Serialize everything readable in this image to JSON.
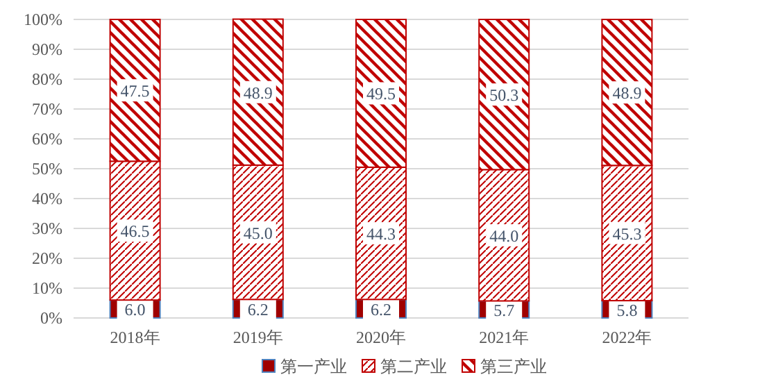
{
  "chart_data": {
    "type": "bar",
    "stacked": true,
    "legend": "bottom",
    "grid": "y",
    "categories": [
      "2018年",
      "2019年",
      "2020年",
      "2021年",
      "2022年"
    ],
    "series": [
      {
        "name": "第一产业",
        "color": "#a00000",
        "values": [
          6.0,
          6.2,
          6.2,
          5.7,
          5.8
        ],
        "value_labels": [
          "6.0",
          "6.2",
          "6.2",
          "5.7",
          "5.8"
        ]
      },
      {
        "name": "第二产业",
        "color": "#c00000",
        "values": [
          46.5,
          45.0,
          44.3,
          44.0,
          45.3
        ],
        "value_labels": [
          "46.5",
          "45.0",
          "44.3",
          "44.0",
          "45.3"
        ]
      },
      {
        "name": "第三产业",
        "color": "#c00000",
        "values": [
          47.5,
          48.9,
          49.5,
          50.3,
          48.9
        ],
        "value_labels": [
          "47.5",
          "48.9",
          "49.5",
          "50.3",
          "48.9"
        ]
      }
    ],
    "ylim": [
      0,
      100
    ],
    "yticks": [
      {
        "value": 0,
        "label": "0%"
      },
      {
        "value": 10,
        "label": "10%"
      },
      {
        "value": 20,
        "label": "20%"
      },
      {
        "value": 30,
        "label": "30%"
      },
      {
        "value": 40,
        "label": "40%"
      },
      {
        "value": 50,
        "label": "50%"
      },
      {
        "value": 60,
        "label": "60%"
      },
      {
        "value": 70,
        "label": "70%"
      },
      {
        "value": 80,
        "label": "80%"
      },
      {
        "value": 90,
        "label": "90%"
      },
      {
        "value": 100,
        "label": "100%"
      }
    ]
  }
}
